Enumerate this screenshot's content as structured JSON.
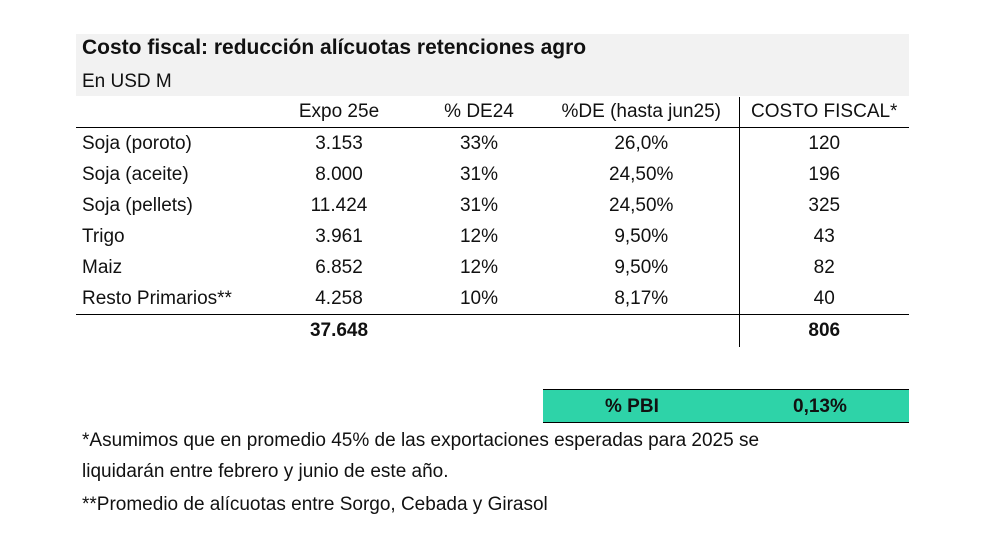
{
  "title": "Costo fiscal: reducción alícuotas retenciones agro",
  "subtitle": "En USD M",
  "table": {
    "headers": [
      "",
      "Expo 25e",
      "% DE24",
      "%DE (hasta jun25)",
      "COSTO FISCAL*"
    ],
    "rows": [
      {
        "name": "Soja (poroto)",
        "expo": "3.153",
        "de24": "33%",
        "de_jun25": "26,0%",
        "costo": "120"
      },
      {
        "name": "Soja (aceite)",
        "expo": "8.000",
        "de24": "31%",
        "de_jun25": "24,50%",
        "costo": "196"
      },
      {
        "name": "Soja (pellets)",
        "expo": "11.424",
        "de24": "31%",
        "de_jun25": "24,50%",
        "costo": "325"
      },
      {
        "name": "Trigo",
        "expo": "3.961",
        "de24": "12%",
        "de_jun25": "9,50%",
        "costo": "43"
      },
      {
        "name": "Maiz",
        "expo": "6.852",
        "de24": "12%",
        "de_jun25": "9,50%",
        "costo": "82"
      },
      {
        "name": "Resto Primarios**",
        "expo": "4.258",
        "de24": "10%",
        "de_jun25": "8,17%",
        "costo": "40"
      }
    ],
    "totals": {
      "expo": "37.648",
      "costo": "806"
    }
  },
  "pbi": {
    "label": "% PBI",
    "value": "0,13%"
  },
  "notes": [
    "*Asumimos que en promedio 45% de las exportaciones esperadas para 2025 se",
    "liquidarán entre febrero y junio de este año.",
    "**Promedio de alícuotas entre Sorgo, Cebada y Girasol"
  ],
  "colors": {
    "header_band": "#f2f2f2",
    "pbi_highlight": "#2ed3a8"
  }
}
